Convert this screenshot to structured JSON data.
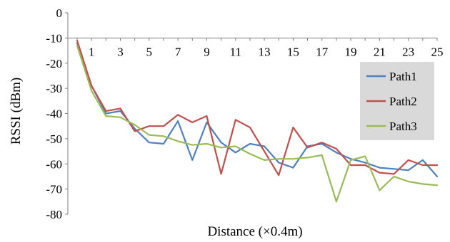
{
  "chart_data": {
    "type": "line",
    "xlabel": "Distance (×0.4m)",
    "ylabel": "RSSI (dBm)",
    "ylim": [
      -80,
      0
    ],
    "xlim": [
      0,
      25
    ],
    "x_tick_values": [
      1,
      3,
      5,
      7,
      9,
      11,
      13,
      15,
      17,
      19,
      21,
      23,
      25
    ],
    "x_tick_labels": [
      "1",
      "3",
      "5",
      "7",
      "9",
      "11",
      "13",
      "15",
      "17",
      "19",
      "21",
      "23",
      "25"
    ],
    "y_tick_values": [
      0,
      -10,
      -20,
      -30,
      -40,
      -50,
      -60,
      -70,
      -80
    ],
    "y_tick_labels": [
      "0",
      "-10",
      "-20",
      "-30",
      "-40",
      "-50",
      "-60",
      "-70",
      "-80"
    ],
    "x_axis_position": "top",
    "grid": false,
    "legend_position": "right",
    "legend_background": "#d9d9d9",
    "x": [
      0,
      1,
      2,
      3,
      4,
      5,
      6,
      7,
      8,
      9,
      10,
      11,
      12,
      13,
      14,
      15,
      16,
      17,
      18,
      19,
      20,
      21,
      22,
      23,
      24,
      25
    ],
    "series": [
      {
        "name": "Path1",
        "color": "#4f81bd",
        "values": [
          -12,
          -29,
          -40,
          -39,
          -46,
          -51.5,
          -52,
          -43,
          -58.5,
          -43.5,
          -51.5,
          -55.5,
          -52,
          -53,
          -59.5,
          -61.5,
          -53,
          -52,
          -55.5,
          -58,
          -59.5,
          -61.5,
          -62,
          -62.5,
          -58.5,
          -65
        ]
      },
      {
        "name": "Path2",
        "color": "#c0504d",
        "values": [
          -11,
          -29,
          -39,
          -38,
          -47,
          -45,
          -45,
          -40.5,
          -43.5,
          -41,
          -64,
          -42.5,
          -45.5,
          -55,
          -64.5,
          -45.5,
          -53.5,
          -51.5,
          -54,
          -60.5,
          -60.5,
          -63.5,
          -64,
          -58.5,
          -60.5,
          -60.5
        ]
      },
      {
        "name": "Path3",
        "color": "#9bbb59",
        "values": [
          -13,
          -31,
          -41,
          -41.5,
          -44.5,
          -48.5,
          -49,
          -51,
          -52.5,
          -52,
          -53.5,
          -53,
          -56,
          -58.5,
          -58,
          -58,
          -57.5,
          -56.5,
          -75,
          -58.5,
          -57,
          -70.5,
          -65,
          -67,
          -68,
          -68.5
        ]
      }
    ]
  }
}
